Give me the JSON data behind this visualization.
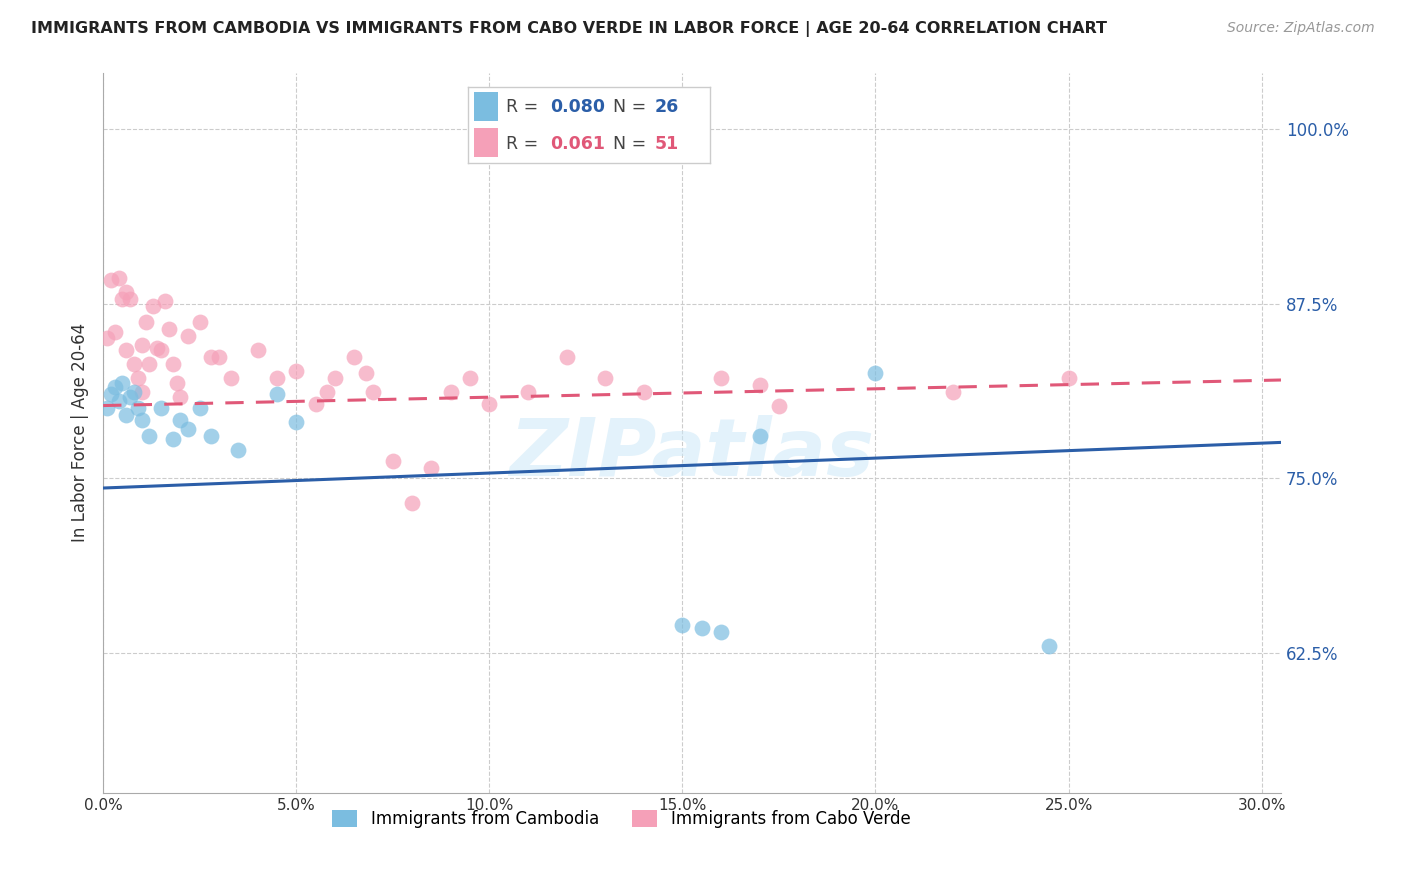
{
  "title": "IMMIGRANTS FROM CAMBODIA VS IMMIGRANTS FROM CABO VERDE IN LABOR FORCE | AGE 20-64 CORRELATION CHART",
  "source": "Source: ZipAtlas.com",
  "ylabel": "In Labor Force | Age 20-64",
  "ytick_values": [
    1.0,
    0.875,
    0.75,
    0.625
  ],
  "ytick_labels": [
    "100.0%",
    "87.5%",
    "75.0%",
    "62.5%"
  ],
  "xlim": [
    0.0,
    0.305
  ],
  "ylim": [
    0.525,
    1.04
  ],
  "watermark": "ZIPatlas",
  "legend_r_cambodia": "0.080",
  "legend_n_cambodia": "26",
  "legend_r_caboverde": "0.061",
  "legend_n_caboverde": "51",
  "color_cambodia": "#7BBDE0",
  "color_caboverde": "#F5A0B8",
  "color_cambodia_line": "#2B5EA8",
  "color_caboverde_line": "#E05878",
  "background_color": "#ffffff",
  "grid_color": "#cccccc",
  "cambodia_x": [
    0.001,
    0.002,
    0.003,
    0.004,
    0.005,
    0.006,
    0.007,
    0.008,
    0.009,
    0.01,
    0.012,
    0.015,
    0.018,
    0.02,
    0.022,
    0.025,
    0.028,
    0.035,
    0.045,
    0.05,
    0.15,
    0.155,
    0.16,
    0.2,
    0.245,
    0.17
  ],
  "cambodia_y": [
    0.8,
    0.81,
    0.815,
    0.805,
    0.818,
    0.795,
    0.808,
    0.812,
    0.8,
    0.792,
    0.78,
    0.8,
    0.778,
    0.792,
    0.785,
    0.8,
    0.78,
    0.77,
    0.81,
    0.79,
    0.645,
    0.643,
    0.64,
    0.825,
    0.63,
    0.78
  ],
  "caboverde_x": [
    0.001,
    0.002,
    0.003,
    0.004,
    0.005,
    0.006,
    0.006,
    0.007,
    0.008,
    0.009,
    0.01,
    0.01,
    0.011,
    0.012,
    0.013,
    0.014,
    0.015,
    0.016,
    0.017,
    0.018,
    0.019,
    0.02,
    0.022,
    0.025,
    0.028,
    0.03,
    0.033,
    0.04,
    0.045,
    0.05,
    0.055,
    0.058,
    0.06,
    0.065,
    0.068,
    0.07,
    0.075,
    0.08,
    0.085,
    0.09,
    0.095,
    0.1,
    0.11,
    0.12,
    0.13,
    0.14,
    0.16,
    0.17,
    0.175,
    0.22,
    0.25
  ],
  "caboverde_y": [
    0.85,
    0.892,
    0.855,
    0.893,
    0.878,
    0.842,
    0.883,
    0.878,
    0.832,
    0.822,
    0.812,
    0.845,
    0.862,
    0.832,
    0.873,
    0.843,
    0.842,
    0.877,
    0.857,
    0.832,
    0.818,
    0.808,
    0.852,
    0.862,
    0.837,
    0.837,
    0.822,
    0.842,
    0.822,
    0.827,
    0.803,
    0.812,
    0.822,
    0.837,
    0.825,
    0.812,
    0.762,
    0.732,
    0.757,
    0.812,
    0.822,
    0.803,
    0.812,
    0.837,
    0.822,
    0.812,
    0.822,
    0.817,
    0.802,
    0.812,
    0.822
  ]
}
